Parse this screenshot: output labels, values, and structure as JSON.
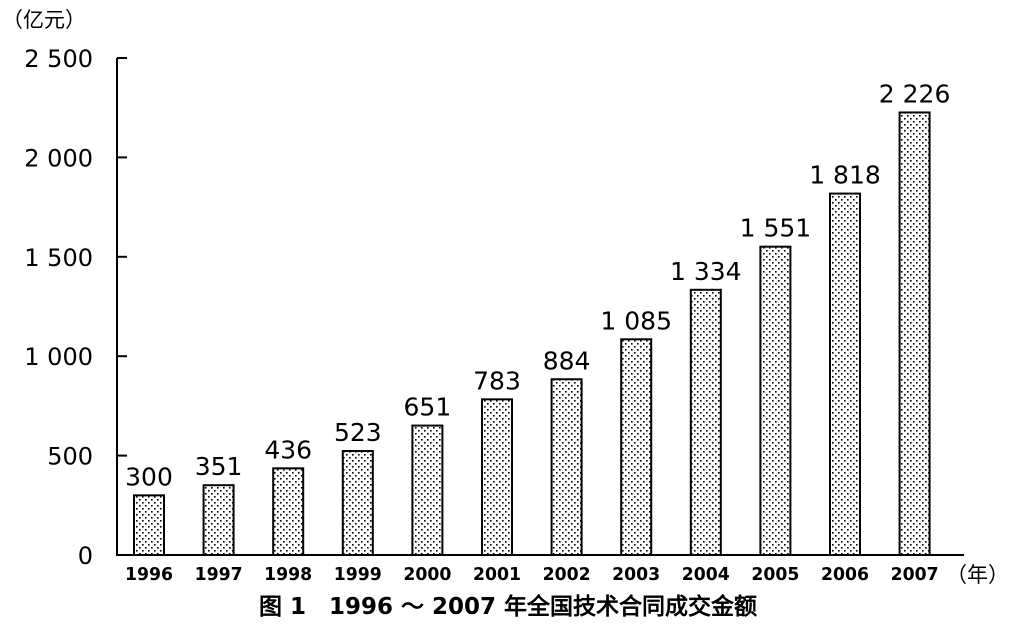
{
  "chart_data": {
    "type": "bar",
    "title": "图 1　1996 ～ 2007 年全国技术合同成交金额",
    "ylabel": "（亿元）",
    "xlabel": "（年）",
    "categories": [
      "1996",
      "1997",
      "1998",
      "1999",
      "2000",
      "2001",
      "2002",
      "2003",
      "2004",
      "2005",
      "2006",
      "2007"
    ],
    "values": [
      300,
      351,
      436,
      523,
      651,
      783,
      884,
      1085,
      1334,
      1551,
      1818,
      2226
    ],
    "value_labels": [
      "300",
      "351",
      "436",
      "523",
      "651",
      "783",
      "884",
      "1 085",
      "1 334",
      "1 551",
      "1 818",
      "2 226"
    ],
    "ylim": [
      0,
      2500
    ],
    "y_ticks": [
      0,
      500,
      1000,
      1500,
      2000,
      2500
    ],
    "y_tick_labels": [
      "0",
      "500",
      "1 000",
      "1 500",
      "2 000",
      "2 500"
    ],
    "grid": false,
    "bar_fill": "dotted pattern",
    "colors": {
      "bar_outline": "#000000",
      "bar_dots": "#000000",
      "bar_background": "#ffffff"
    }
  }
}
